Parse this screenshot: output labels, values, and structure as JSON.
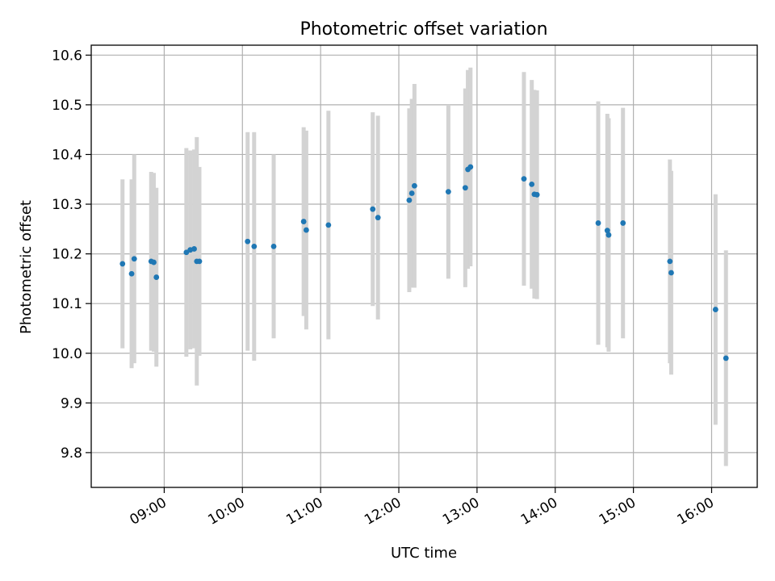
{
  "chart_data": {
    "type": "scatter",
    "title": "Photometric offset variation",
    "xlabel": "UTC time",
    "ylabel": "Photometric offset",
    "x_ticks": [
      "09:00",
      "10:00",
      "11:00",
      "12:00",
      "13:00",
      "14:00",
      "15:00",
      "16:00"
    ],
    "y_ticks": [
      "9.8",
      "9.9",
      "10.0",
      "10.1",
      "10.2",
      "10.3",
      "10.4",
      "10.5",
      "10.6"
    ],
    "xlim": [
      "08:04",
      "16:35"
    ],
    "ylim": [
      9.73,
      10.62
    ],
    "grid": true,
    "marker_color": "#1f77b4",
    "errorbar_color": "#d3d3d3",
    "points": [
      {
        "time": "08:28",
        "y": 10.18,
        "yerr": 0.17
      },
      {
        "time": "08:35",
        "y": 10.16,
        "yerr": 0.19
      },
      {
        "time": "08:37",
        "y": 10.19,
        "yerr": 0.21
      },
      {
        "time": "08:50",
        "y": 10.185,
        "yerr": 0.18
      },
      {
        "time": "08:52",
        "y": 10.183,
        "yerr": 0.18
      },
      {
        "time": "08:54",
        "y": 10.153,
        "yerr": 0.18
      },
      {
        "time": "09:17",
        "y": 10.203,
        "yerr": 0.21
      },
      {
        "time": "09:20",
        "y": 10.208,
        "yerr": 0.2
      },
      {
        "time": "09:23",
        "y": 10.21,
        "yerr": 0.2
      },
      {
        "time": "09:25",
        "y": 10.185,
        "yerr": 0.25
      },
      {
        "time": "09:27",
        "y": 10.185,
        "yerr": 0.19
      },
      {
        "time": "10:04",
        "y": 10.225,
        "yerr": 0.22
      },
      {
        "time": "10:09",
        "y": 10.215,
        "yerr": 0.23
      },
      {
        "time": "10:24",
        "y": 10.215,
        "yerr": 0.185
      },
      {
        "time": "10:47",
        "y": 10.265,
        "yerr": 0.19
      },
      {
        "time": "10:49",
        "y": 10.248,
        "yerr": 0.2
      },
      {
        "time": "11:06",
        "y": 10.258,
        "yerr": 0.23
      },
      {
        "time": "11:40",
        "y": 10.29,
        "yerr": 0.195
      },
      {
        "time": "11:44",
        "y": 10.273,
        "yerr": 0.205
      },
      {
        "time": "12:08",
        "y": 10.308,
        "yerr": 0.185
      },
      {
        "time": "12:10",
        "y": 10.322,
        "yerr": 0.19
      },
      {
        "time": "12:12",
        "y": 10.337,
        "yerr": 0.205
      },
      {
        "time": "12:38",
        "y": 10.325,
        "yerr": 0.175
      },
      {
        "time": "12:51",
        "y": 10.333,
        "yerr": 0.2
      },
      {
        "time": "12:53",
        "y": 10.37,
        "yerr": 0.2
      },
      {
        "time": "12:55",
        "y": 10.375,
        "yerr": 0.2
      },
      {
        "time": "13:36",
        "y": 10.351,
        "yerr": 0.215
      },
      {
        "time": "13:42",
        "y": 10.34,
        "yerr": 0.21
      },
      {
        "time": "13:44",
        "y": 10.32,
        "yerr": 0.21
      },
      {
        "time": "13:46",
        "y": 10.319,
        "yerr": 0.21
      },
      {
        "time": "14:33",
        "y": 10.262,
        "yerr": 0.245
      },
      {
        "time": "14:40",
        "y": 10.247,
        "yerr": 0.235
      },
      {
        "time": "14:41",
        "y": 10.238,
        "yerr": 0.235
      },
      {
        "time": "14:52",
        "y": 10.262,
        "yerr": 0.232
      },
      {
        "time": "15:28",
        "y": 10.185,
        "yerr": 0.205
      },
      {
        "time": "15:29",
        "y": 10.162,
        "yerr": 0.205
      },
      {
        "time": "16:03",
        "y": 10.088,
        "yerr": 0.232
      },
      {
        "time": "16:11",
        "y": 9.99,
        "yerr": 0.217
      }
    ]
  }
}
